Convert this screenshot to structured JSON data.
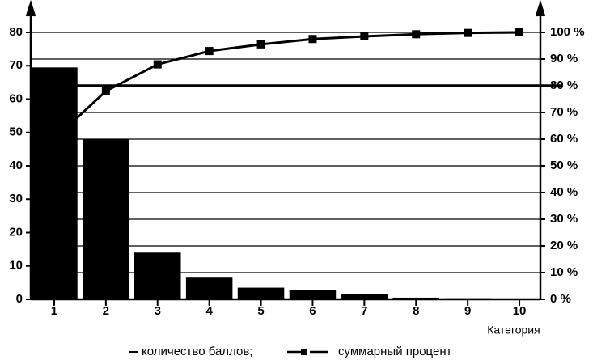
{
  "chart_data": {
    "type": "pareto",
    "x_label": "Категория",
    "categories": [
      "1",
      "2",
      "3",
      "4",
      "5",
      "6",
      "7",
      "8",
      "9",
      "10"
    ],
    "series": [
      {
        "name": "количество баллов;",
        "color": "#000000",
        "values": [
          69.5,
          48,
          14,
          6.5,
          3.5,
          2.7,
          1.5,
          0.5,
          0.3,
          0.1
        ]
      },
      {
        "name": "суммарный процент",
        "color": "#000000",
        "axis": "y2",
        "values": [
          60,
          78,
          88,
          93,
          95.5,
          97.5,
          98.5,
          99.3,
          99.8,
          100
        ]
      }
    ],
    "ylim": [
      0,
      80
    ],
    "yticks": [
      0,
      10,
      20,
      30,
      40,
      50,
      60,
      70,
      80
    ],
    "y2lim": [
      0,
      100
    ],
    "y2ticks": [
      {
        "value": 0,
        "label": "0 %"
      },
      {
        "value": 10,
        "label": "10 %"
      },
      {
        "value": 20,
        "label": "20 %"
      },
      {
        "value": 30,
        "label": "30 %"
      },
      {
        "value": 40,
        "label": "40 %"
      },
      {
        "value": 50,
        "label": "50 %"
      },
      {
        "value": 60,
        "label": "60 %"
      },
      {
        "value": 70,
        "label": "70 %"
      },
      {
        "value": 80,
        "label": "80 %"
      },
      {
        "value": 90,
        "label": "90 %"
      },
      {
        "value": 100,
        "label": "100 %"
      }
    ],
    "reference_line": 80,
    "grid": true
  }
}
